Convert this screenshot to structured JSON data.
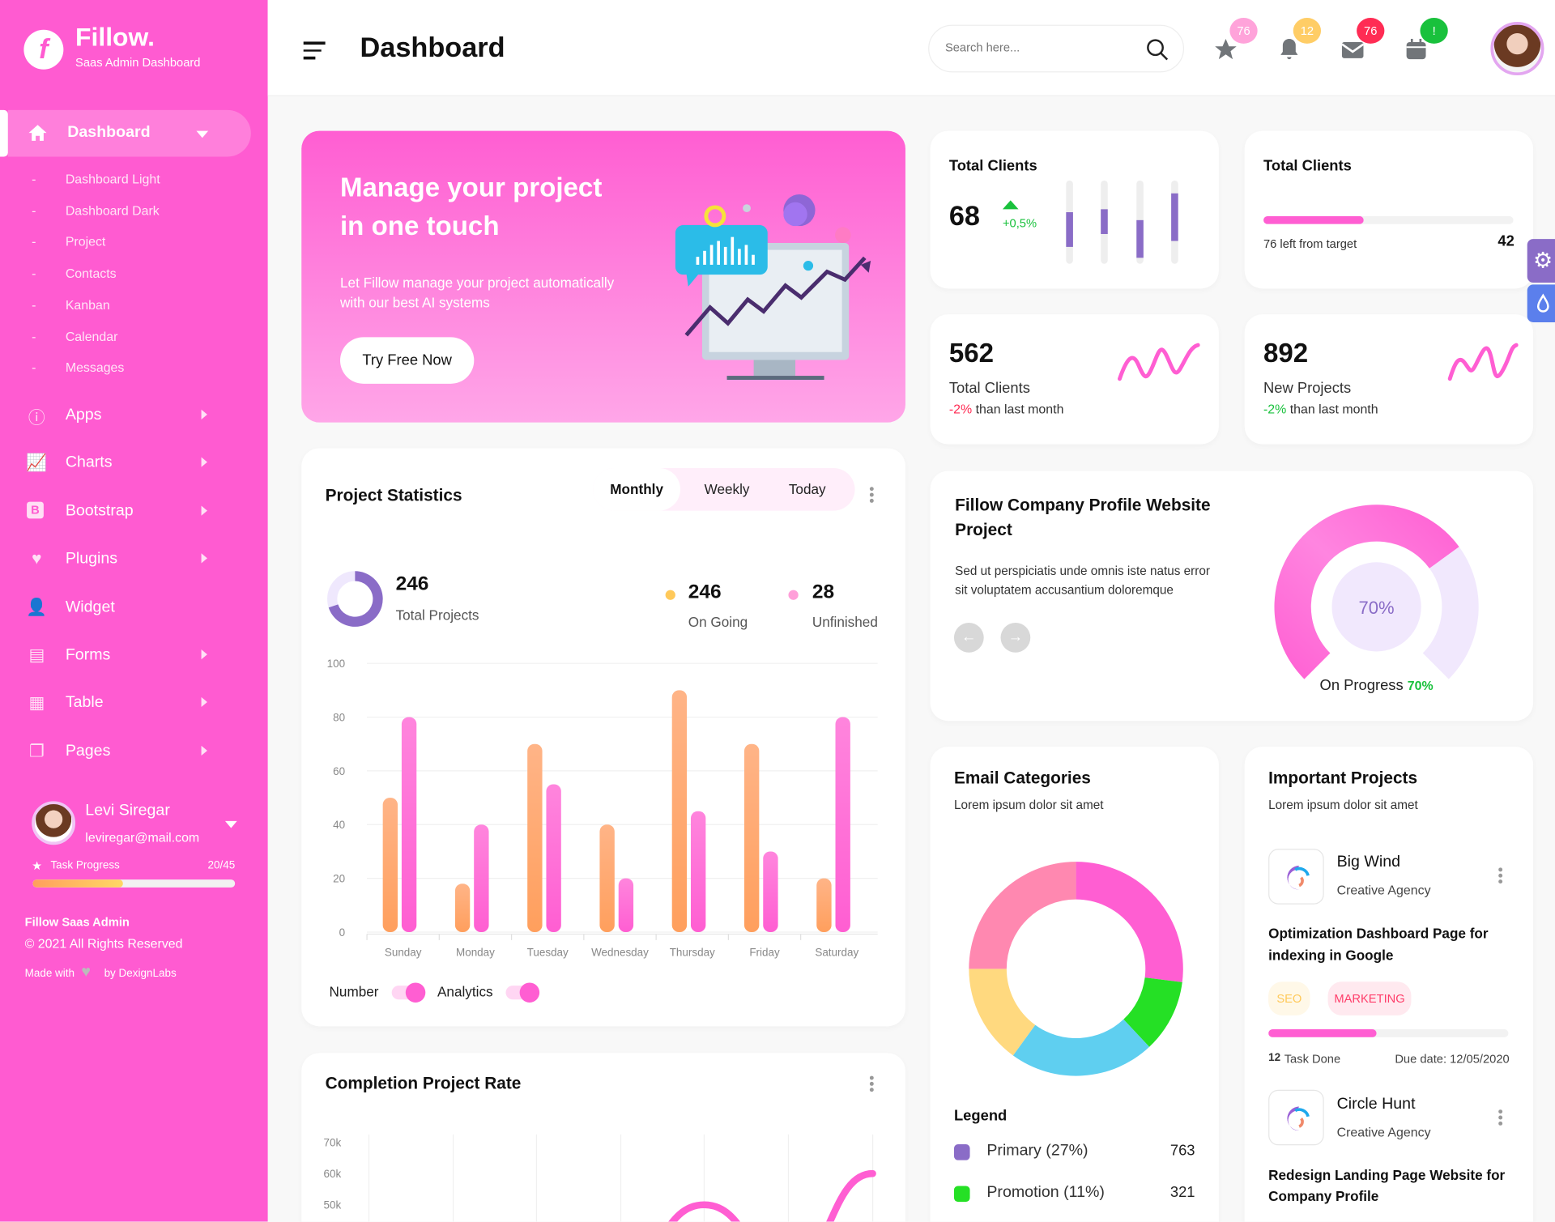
{
  "sidebar": {
    "brand": "Fillow.",
    "brand_logo_letter": "f",
    "subtitle": "Saas Admin Dashboard",
    "active_menu": "Dashboard",
    "submenu": [
      "Dashboard Light",
      "Dashboard Dark",
      "Project",
      "Contacts",
      "Kanban",
      "Calendar",
      "Messages"
    ],
    "menu": [
      {
        "label": "Apps",
        "icon": "info-icon",
        "arrow": true
      },
      {
        "label": "Charts",
        "icon": "chart-icon",
        "arrow": true
      },
      {
        "label": "Bootstrap",
        "icon": "bootstrap-icon",
        "arrow": true
      },
      {
        "label": "Plugins",
        "icon": "heart-icon",
        "arrow": true
      },
      {
        "label": "Widget",
        "icon": "user-check-icon",
        "arrow": false
      },
      {
        "label": "Forms",
        "icon": "file-icon",
        "arrow": true
      },
      {
        "label": "Table",
        "icon": "table-icon",
        "arrow": true
      },
      {
        "label": "Pages",
        "icon": "pages-icon",
        "arrow": true
      }
    ],
    "profile": {
      "name": "Levi Siregar",
      "email": "leviregar@mail.com",
      "task_label": "Task Progress",
      "task_count": "20/45",
      "task_progress": 0.444
    },
    "footer": {
      "title": "Fillow Saas Admin",
      "copyright": "© 2021 All Rights Reserved",
      "made_with": "Made with",
      "by": "by DexignLabs"
    }
  },
  "header": {
    "title": "Dashboard",
    "search_placeholder": "Search here...",
    "badges": [
      {
        "icon": "star-icon",
        "count": "76",
        "color": "#ffa3da"
      },
      {
        "icon": "bell-icon",
        "count": "12",
        "color": "#ffcd66"
      },
      {
        "icon": "mail-icon",
        "count": "76",
        "color": "#ff2c54"
      },
      {
        "icon": "calendar-icon",
        "count": "!",
        "color": "#19c13c"
      }
    ]
  },
  "hero": {
    "title_line1": "Manage your project",
    "title_line2": "in one touch",
    "desc_line1": "Let Fillow manage your project automatically",
    "desc_line2": "with our best AI systems",
    "button": "Try Free Now"
  },
  "stats": {
    "card1": {
      "title": "Total Clients",
      "value": "68",
      "change": "+0,5%"
    },
    "card2": {
      "title": "Total Clients",
      "left_text": "76 left from target",
      "value": "42",
      "progress": 0.4
    },
    "card3": {
      "value": "562",
      "label": "Total Clients",
      "change": "-2%",
      "change_suffix": " than last month"
    },
    "card4": {
      "value": "892",
      "label": "New Projects",
      "change": "-2%",
      "change_suffix": " than last month"
    }
  },
  "project_statistics": {
    "title": "Project Statistics",
    "tabs": [
      "Monthly",
      "Weekly",
      "Today"
    ],
    "active_tab": "Monthly",
    "total": "246",
    "total_label": "Total Projects",
    "total_ratio": 0.7,
    "ongoing": "246",
    "ongoing_label": "On Going",
    "unfinished": "28",
    "unfinished_label": "Unfinished",
    "legend": [
      "Number",
      "Analytics"
    ]
  },
  "completion": {
    "title": "Completion Project Rate"
  },
  "profile_project": {
    "title_line1": "Fillow Company Profile Website",
    "title_line2": "Project",
    "desc_line1": "Sed ut perspiciatis unde omnis iste natus error",
    "desc_line2": "sit voluptatem accusantium doloremque",
    "progress_label": "70%",
    "status_label": "On Progress",
    "status_value": "70%",
    "progress": 0.7
  },
  "email_categories": {
    "title": "Email Categories",
    "subtitle": "Lorem ipsum dolor sit amet",
    "legend_title": "Legend",
    "legend": [
      {
        "label": "Primary (27%)",
        "value": "763",
        "color": "#8a6cc7"
      },
      {
        "label": "Promotion (11%)",
        "value": "321",
        "color": "#25e025"
      }
    ]
  },
  "important_projects": {
    "title": "Important Projects",
    "subtitle": "Lorem ipsum dolor sit amet",
    "items": [
      {
        "name": "Big Wind",
        "company": "Creative Agency",
        "task_line1": "Optimization Dashboard Page for",
        "task_line2": "indexing in Google",
        "tags": [
          "SEO",
          "MARKETING"
        ],
        "progress": 0.45,
        "done_count": "12",
        "done_label": "Task Done",
        "due": "Due date: 12/05/2020"
      },
      {
        "name": "Circle Hunt",
        "company": "Creative Agency",
        "task_line1": "Redesign Landing Page Website for",
        "task_line2": "Company Profile"
      }
    ]
  },
  "chart_data": [
    {
      "type": "bar",
      "title": "Project Statistics",
      "categories": [
        "Sunday",
        "Monday",
        "Tuesday",
        "Wednesday",
        "Thursday",
        "Friday",
        "Saturday"
      ],
      "series": [
        {
          "name": "Number",
          "values": [
            50,
            18,
            70,
            40,
            90,
            70,
            20
          ],
          "color": "#ffa36b"
        },
        {
          "name": "Analytics",
          "values": [
            80,
            40,
            55,
            20,
            45,
            30,
            80
          ],
          "color": "#ff5ed2"
        }
      ],
      "yticks": [
        "0",
        "20",
        "40",
        "60",
        "80",
        "100"
      ],
      "ylim": [
        0,
        100
      ],
      "grid": true,
      "legend": "bottom-left"
    },
    {
      "type": "line",
      "title": "Completion Project Rate",
      "yticks": [
        "70k",
        "60k",
        "50k"
      ],
      "series": [
        {
          "name": "Rate",
          "values": [
            null,
            null,
            null,
            30,
            50,
            30,
            60
          ],
          "color": "#ff5ed2"
        }
      ],
      "ylim_visible": [
        45,
        70
      ]
    },
    {
      "type": "pie",
      "title": "Email Categories",
      "slices": [
        {
          "value": 27,
          "color": "#ff5ed2"
        },
        {
          "value": 11,
          "color": "#25e025"
        },
        {
          "value": 22,
          "color": "#5fcff0"
        },
        {
          "value": 15,
          "color": "#ffd97f"
        },
        {
          "value": 25,
          "color": "#ff88b0"
        }
      ]
    }
  ]
}
